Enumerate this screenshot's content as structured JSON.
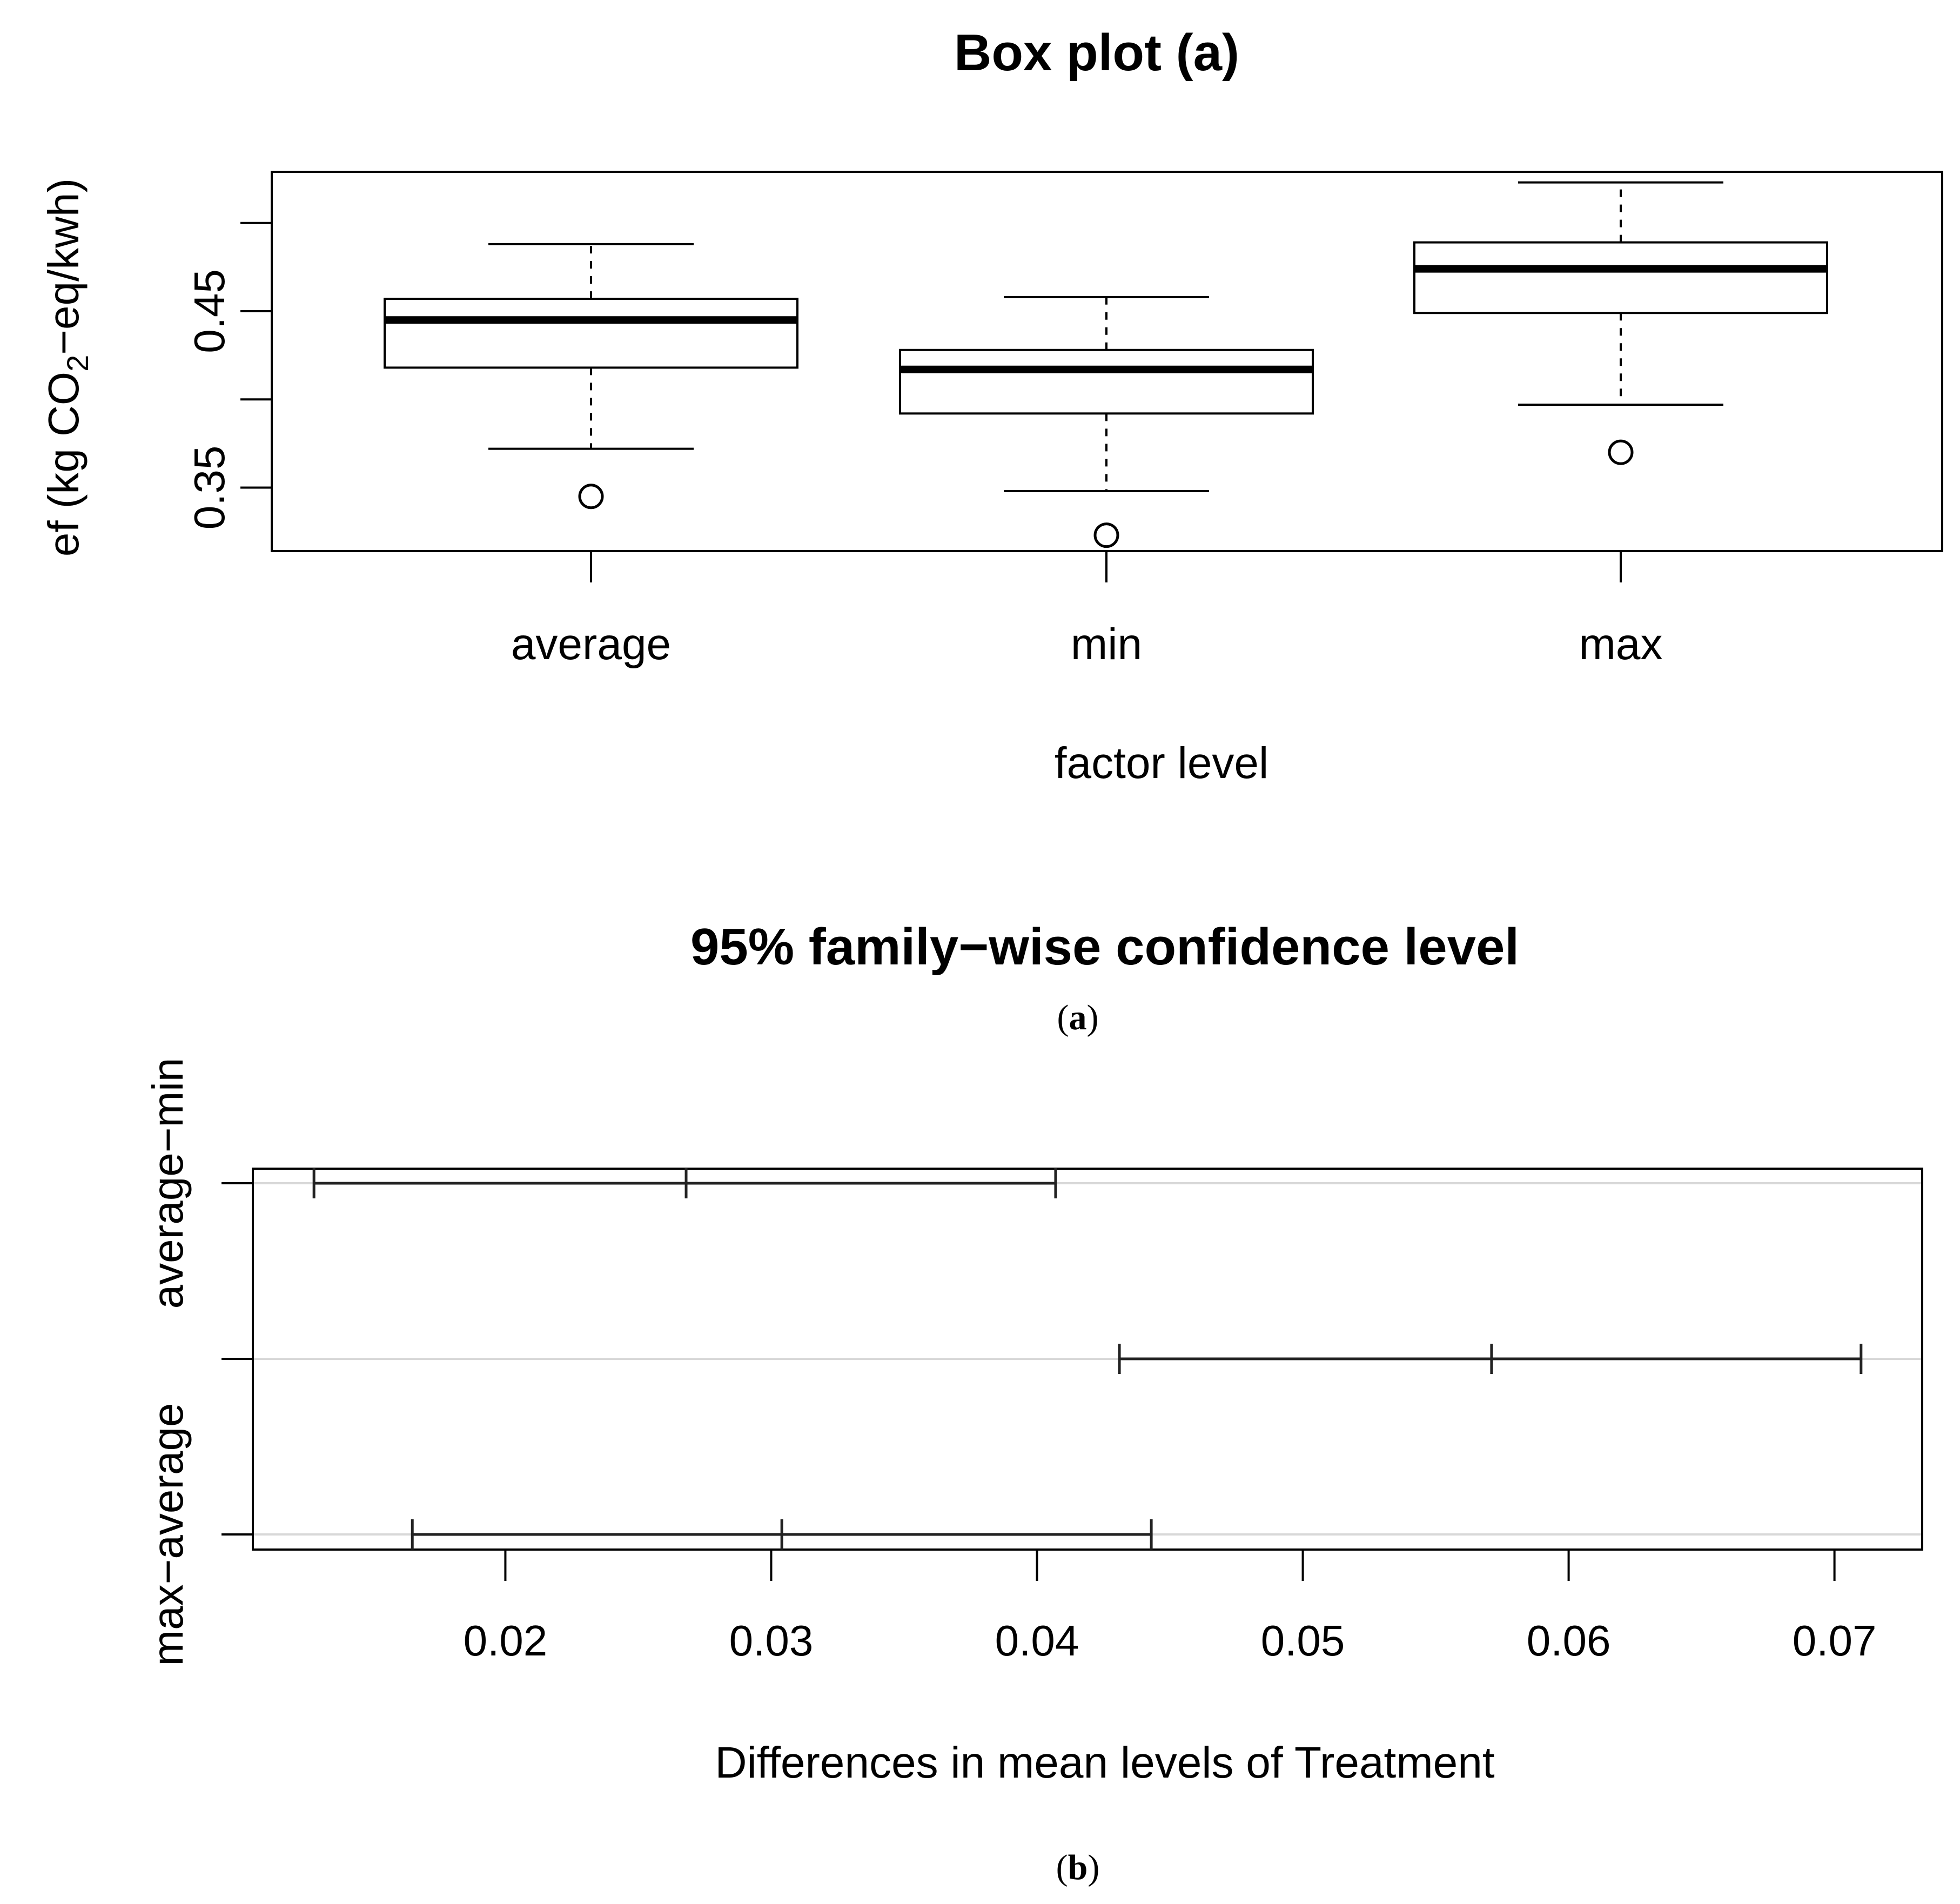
{
  "chart_data": [
    {
      "type": "box",
      "title": "Box plot (a)",
      "xlabel": "factor level",
      "ylabel_parts": [
        "ef (kg CO",
        "2",
        "−eq/kwh)"
      ],
      "categories": [
        "average",
        "min",
        "max"
      ],
      "ylim": [
        0.314,
        0.529
      ],
      "yticks": [
        0.35,
        0.4,
        0.45,
        0.5
      ],
      "ytick_labels": [
        "0.35",
        "",
        "0.45",
        ""
      ],
      "boxes": [
        {
          "category": "average",
          "whisker_low": 0.372,
          "q1": 0.418,
          "median": 0.445,
          "q3": 0.457,
          "whisker_high": 0.488,
          "outliers": [
            0.345
          ]
        },
        {
          "category": "min",
          "whisker_low": 0.348,
          "q1": 0.392,
          "median": 0.417,
          "q3": 0.428,
          "whisker_high": 0.458,
          "outliers": [
            0.323
          ]
        },
        {
          "category": "max",
          "whisker_low": 0.397,
          "q1": 0.449,
          "median": 0.474,
          "q3": 0.489,
          "whisker_high": 0.523,
          "outliers": [
            0.37
          ]
        }
      ]
    },
    {
      "type": "interval",
      "title": "95% family−wise confidence level",
      "xlabel": "Differences in mean levels of Treatment",
      "xlim": [
        0.0105,
        0.0733
      ],
      "xticks": [
        0.02,
        0.03,
        0.04,
        0.05,
        0.06,
        0.07
      ],
      "xtick_labels": [
        "0.02",
        "0.03",
        "0.04",
        "0.05",
        "0.06",
        "0.07"
      ],
      "ytick_labels": [
        "average−min",
        "max−average"
      ],
      "intervals": [
        {
          "lwr": 0.0128,
          "diff": 0.0268,
          "upr": 0.0407
        },
        {
          "lwr": 0.0431,
          "diff": 0.0571,
          "upr": 0.071
        },
        {
          "lwr": 0.0165,
          "diff": 0.0304,
          "upr": 0.0443
        }
      ]
    }
  ],
  "captions": {
    "a": {
      "open": "(",
      "letter": "a",
      "close": ")"
    },
    "b": {
      "open": "(",
      "letter": "b",
      "close": ")"
    }
  }
}
